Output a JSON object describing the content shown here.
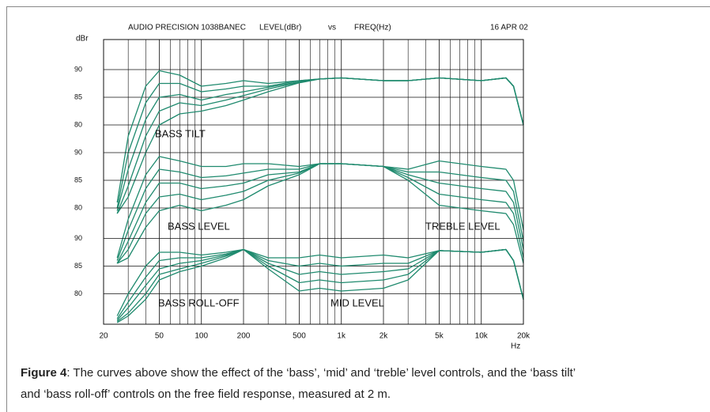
{
  "header": {
    "instrument": "AUDIO PRECISION 1038BANEC",
    "y_quantity": "LEVEL(dBr)",
    "versus": "vs",
    "x_quantity": "FREQ(Hz)",
    "date": "16 APR 02"
  },
  "chart_data": [
    {
      "type": "line",
      "y_label": "dBr",
      "x_label": "Hz",
      "log_x": true,
      "grid": true,
      "xlim": [
        20,
        20000
      ],
      "xticks": [
        20,
        50,
        100,
        200,
        500,
        {
          "value": 1000,
          "label": "1k"
        },
        {
          "value": 2000,
          "label": "2k"
        },
        {
          "value": 5000,
          "label": "5k"
        },
        {
          "value": 10000,
          "label": "10k"
        },
        {
          "value": 20000,
          "label": "20k"
        }
      ],
      "x_minor_ticks": [
        30,
        40,
        60,
        70,
        80,
        90,
        300,
        400,
        600,
        700,
        800,
        900,
        3000,
        4000,
        6000,
        7000,
        8000,
        9000
      ],
      "ylim": [
        44,
        95.43
      ],
      "yticks": [
        90,
        85,
        80
      ],
      "annotations": [
        "BASS TILT"
      ],
      "x": [
        25,
        30,
        40,
        50,
        70,
        100,
        150,
        200,
        300,
        500,
        700,
        1000,
        2000,
        3000,
        5000,
        10000,
        15000,
        17000,
        20000
      ],
      "series": [
        {
          "color": "#1f8a6e",
          "values": [
            66,
            78,
            87,
            89.8,
            89,
            87,
            87.5,
            88,
            87.5,
            88,
            88.3,
            88.5,
            88,
            88,
            88.5,
            88,
            88.5,
            87,
            80
          ]
        },
        {
          "color": "#1f8a6e",
          "values": [
            65,
            75,
            84,
            87.5,
            87.5,
            86,
            86.5,
            87,
            87,
            88,
            88.3,
            88.5,
            88,
            88,
            88.5,
            88,
            88.5,
            87,
            80
          ]
        },
        {
          "color": "#1f8a6e",
          "values": [
            64.5,
            72,
            81,
            85,
            85.5,
            84.5,
            85.5,
            86,
            86.8,
            87.8,
            88.3,
            88.5,
            88,
            88,
            88.5,
            88,
            88.5,
            87,
            80
          ]
        },
        {
          "color": "#1f8a6e",
          "values": [
            64,
            69,
            78,
            82.5,
            84,
            83.5,
            84.5,
            85.3,
            86.5,
            87.7,
            88.3,
            88.5,
            88,
            88,
            88.5,
            88,
            88.5,
            87,
            80
          ]
        },
        {
          "color": "#1f8a6e",
          "values": [
            64,
            67,
            75,
            80,
            82,
            82.5,
            83.5,
            84.5,
            86,
            87.6,
            88.3,
            88.5,
            88,
            88,
            88.5,
            88,
            88.5,
            87,
            80
          ]
        }
      ]
    },
    {
      "type": "line",
      "ylim": [
        59,
        110.43
      ],
      "yticks": [
        90,
        85,
        80
      ],
      "annotations": [
        "BASS LEVEL",
        "TREBLE LEVEL"
      ],
      "x": [
        25,
        30,
        40,
        50,
        70,
        100,
        150,
        200,
        300,
        500,
        700,
        1000,
        2000,
        3000,
        5000,
        10000,
        15000,
        17000,
        20000
      ],
      "series": [
        {
          "color": "#1f8a6e",
          "values": [
            71,
            78,
            86,
            89.3,
            88.5,
            87.5,
            87.5,
            88,
            88,
            87.5,
            88,
            88,
            87.5,
            87,
            88.5,
            87.5,
            87,
            85,
            76
          ]
        },
        {
          "color": "#1f8a6e",
          "values": [
            70.5,
            76,
            83.5,
            87,
            86.5,
            85.5,
            85.8,
            86.3,
            87,
            87,
            88,
            88,
            87.5,
            86.5,
            86.5,
            85.5,
            85,
            83,
            74
          ]
        },
        {
          "color": "#1f8a6e",
          "values": [
            70,
            74,
            81,
            84.5,
            84.5,
            83.5,
            84,
            84.5,
            86,
            86.5,
            88,
            88,
            87.5,
            86,
            84.5,
            83.5,
            83,
            81,
            72.5
          ]
        },
        {
          "color": "#1f8a6e",
          "values": [
            70,
            72.5,
            79,
            82,
            82.5,
            81.5,
            82.3,
            83,
            85,
            86.3,
            88,
            88,
            87.5,
            85.5,
            82.5,
            81.5,
            81,
            79,
            71
          ]
        },
        {
          "color": "#1f8a6e",
          "values": [
            70,
            71,
            76.5,
            79.5,
            80.5,
            79.5,
            80.5,
            81.5,
            84,
            86,
            88,
            88,
            87.5,
            85,
            80.5,
            79.5,
            79,
            77,
            70
          ]
        }
      ]
    },
    {
      "type": "line",
      "ylim": [
        74.5,
        125.93
      ],
      "yticks": [
        90,
        85,
        80
      ],
      "annotations": [
        "BASS ROLL-OFF",
        "MID LEVEL"
      ],
      "x": [
        25,
        30,
        40,
        50,
        70,
        100,
        150,
        200,
        300,
        500,
        700,
        1000,
        2000,
        3000,
        5000,
        10000,
        15000,
        17000,
        20000
      ],
      "series": [
        {
          "color": "#1f8a6e",
          "values": [
            76,
            80,
            85,
            87.5,
            87.5,
            87,
            87.5,
            88,
            86.5,
            86.5,
            87,
            86.5,
            87,
            86.5,
            87.8,
            87.5,
            88,
            86,
            79
          ]
        },
        {
          "color": "#1f8a6e",
          "values": [
            75.5,
            78.5,
            83,
            86,
            86.5,
            86.5,
            87.2,
            88,
            86,
            85,
            85.5,
            85,
            85.5,
            85.5,
            87.8,
            87.5,
            88,
            86,
            79
          ]
        },
        {
          "color": "#1f8a6e",
          "values": [
            75.2,
            77.5,
            81.5,
            84.5,
            85.5,
            86,
            87,
            88,
            85.5,
            83.5,
            84,
            83.5,
            84,
            84.5,
            87.8,
            87.5,
            88,
            86,
            79
          ]
        },
        {
          "color": "#1f8a6e",
          "values": [
            75,
            76.5,
            80,
            83.5,
            84.5,
            85.5,
            86.8,
            88,
            85,
            82,
            82.5,
            82,
            82.5,
            83.5,
            87.8,
            87.5,
            88,
            86,
            79
          ]
        },
        {
          "color": "#1f8a6e",
          "values": [
            74.8,
            76,
            79,
            82.5,
            84,
            85,
            86.5,
            88,
            84.5,
            80.5,
            81,
            80.5,
            81,
            82.5,
            87.8,
            87.5,
            88,
            86,
            79
          ]
        }
      ]
    }
  ],
  "caption": {
    "label": "Figure 4",
    "text": ": The curves above show the effect of the ‘bass’, ‘mid’ and ‘treble’ level controls, and the ‘bass tilt’ and ‘bass roll-off’ controls on the free field response, measured at 2 m."
  }
}
